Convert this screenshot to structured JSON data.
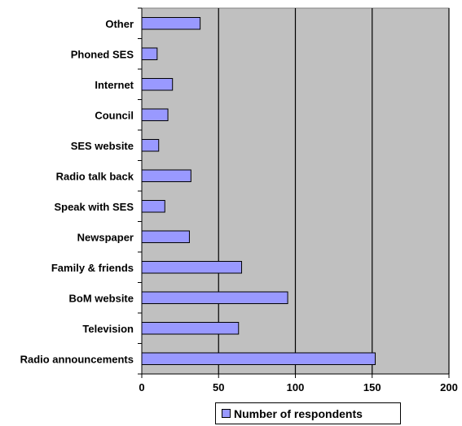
{
  "chart_data": {
    "type": "bar",
    "orientation": "horizontal",
    "categories": [
      "Other",
      "Phoned SES",
      "Internet",
      "Council",
      "SES website",
      "Radio talk back",
      "Speak with SES",
      "Newspaper",
      "Family & friends",
      "BoM website",
      "Television",
      "Radio announcements"
    ],
    "series": [
      {
        "name": "Number of respondents",
        "values": [
          38,
          10,
          20,
          17,
          11,
          32,
          15,
          31,
          65,
          95,
          63,
          152
        ]
      }
    ],
    "xlim": [
      0,
      200
    ],
    "x_ticks": [
      "0",
      "50",
      "100",
      "150",
      "200"
    ],
    "grid": "vertical major gridlines",
    "legend_position": "bottom",
    "colors": {
      "bar_fill": "#9999ff",
      "plot_background": "#c0c0c0",
      "bar_edge": "#000000",
      "grid": "#000000"
    }
  }
}
